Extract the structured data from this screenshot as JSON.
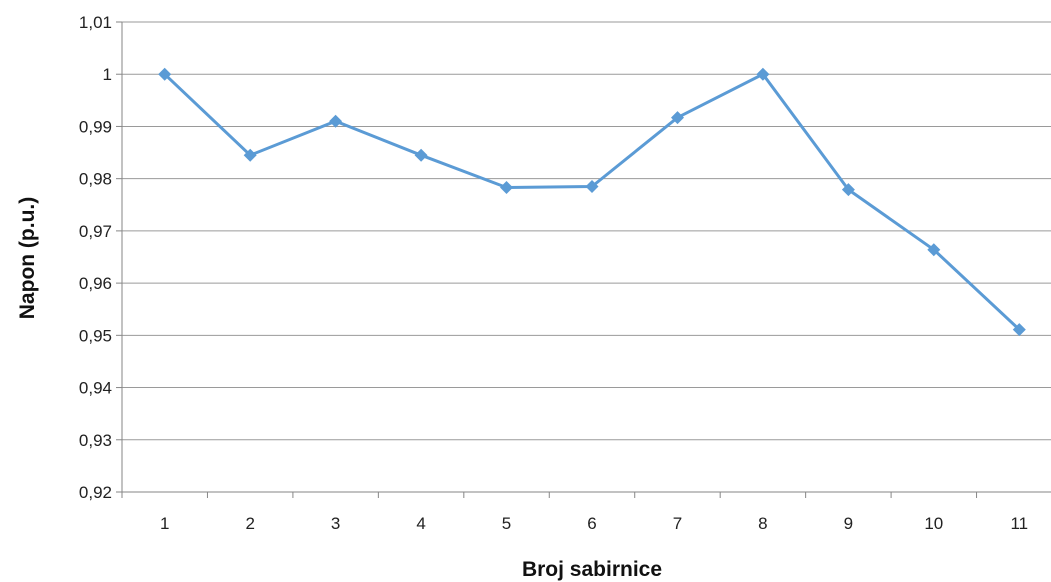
{
  "chart_data": {
    "type": "line",
    "xlabel": "Broj sabirnice",
    "ylabel": "Napon (p.u.)",
    "categories": [
      "1",
      "2",
      "3",
      "4",
      "5",
      "6",
      "7",
      "8",
      "9",
      "10",
      "11"
    ],
    "series": [
      {
        "values": [
          1.0,
          0.9845,
          0.991,
          0.9845,
          0.9783,
          0.9785,
          0.9917,
          1.0,
          0.9779,
          0.9664,
          0.9511
        ],
        "color": "#5b9bd5",
        "marker": "diamond"
      }
    ],
    "ylim": [
      0.92,
      1.01
    ],
    "yticks": [
      "0,92",
      "0,93",
      "0,94",
      "0,95",
      "0,96",
      "0,97",
      "0,98",
      "0,99",
      "1",
      "1,01"
    ],
    "grid": true,
    "legend": "none"
  }
}
